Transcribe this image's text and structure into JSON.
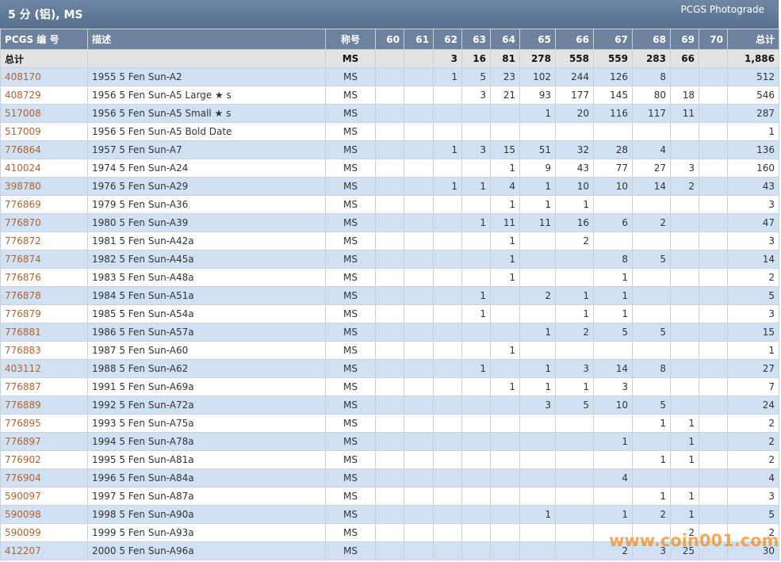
{
  "header": {
    "title": "5 分 (铝), MS",
    "subtitle": "PCGS Photograde"
  },
  "table": {
    "columns": [
      "PCGS 编 号",
      "描述",
      "称号",
      "60",
      "61",
      "62",
      "63",
      "64",
      "65",
      "66",
      "67",
      "68",
      "69",
      "70",
      "总计"
    ],
    "total_row": [
      "总计",
      null,
      "MS",
      null,
      null,
      3,
      16,
      81,
      278,
      558,
      559,
      283,
      66,
      null,
      "1,886"
    ],
    "rows": [
      [
        "408170",
        "1955 5 Fen Sun-A2",
        "MS",
        null,
        null,
        1,
        5,
        23,
        102,
        244,
        126,
        8,
        null,
        null,
        512
      ],
      [
        "408729",
        "1956 5 Fen Sun-A5 Large ★ s",
        "MS",
        null,
        null,
        null,
        3,
        21,
        93,
        177,
        145,
        80,
        18,
        null,
        546
      ],
      [
        "517008",
        "1956 5 Fen Sun-A5 Small ★ s",
        "MS",
        null,
        null,
        null,
        null,
        null,
        1,
        20,
        116,
        117,
        11,
        null,
        287
      ],
      [
        "517009",
        "1956 5 Fen Sun-A5 Bold Date",
        "MS",
        null,
        null,
        null,
        null,
        null,
        null,
        null,
        null,
        null,
        null,
        null,
        1
      ],
      [
        "776864",
        "1957 5 Fen Sun-A7",
        "MS",
        null,
        null,
        1,
        3,
        15,
        51,
        32,
        28,
        4,
        null,
        null,
        136
      ],
      [
        "410024",
        "1974 5 Fen Sun-A24",
        "MS",
        null,
        null,
        null,
        null,
        1,
        9,
        43,
        77,
        27,
        3,
        null,
        160
      ],
      [
        "398780",
        "1976 5 Fen Sun-A29",
        "MS",
        null,
        null,
        1,
        1,
        4,
        1,
        10,
        10,
        14,
        2,
        null,
        43
      ],
      [
        "776869",
        "1979 5 Fen Sun-A36",
        "MS",
        null,
        null,
        null,
        null,
        1,
        1,
        1,
        null,
        null,
        null,
        null,
        3
      ],
      [
        "776870",
        "1980 5 Fen Sun-A39",
        "MS",
        null,
        null,
        null,
        1,
        11,
        11,
        16,
        6,
        2,
        null,
        null,
        47
      ],
      [
        "776872",
        "1981 5 Fen Sun-A42a",
        "MS",
        null,
        null,
        null,
        null,
        1,
        null,
        2,
        null,
        null,
        null,
        null,
        3
      ],
      [
        "776874",
        "1982 5 Fen Sun-A45a",
        "MS",
        null,
        null,
        null,
        null,
        1,
        null,
        null,
        8,
        5,
        null,
        null,
        14
      ],
      [
        "776876",
        "1983 5 Fen Sun-A48a",
        "MS",
        null,
        null,
        null,
        null,
        1,
        null,
        null,
        1,
        null,
        null,
        null,
        2
      ],
      [
        "776878",
        "1984 5 Fen Sun-A51a",
        "MS",
        null,
        null,
        null,
        1,
        null,
        2,
        1,
        1,
        null,
        null,
        null,
        5
      ],
      [
        "776879",
        "1985 5 Fen Sun-A54a",
        "MS",
        null,
        null,
        null,
        1,
        null,
        null,
        1,
        1,
        null,
        null,
        null,
        3
      ],
      [
        "776881",
        "1986 5 Fen Sun-A57a",
        "MS",
        null,
        null,
        null,
        null,
        null,
        1,
        2,
        5,
        5,
        null,
        null,
        15
      ],
      [
        "776883",
        "1987 5 Fen Sun-A60",
        "MS",
        null,
        null,
        null,
        null,
        1,
        null,
        null,
        null,
        null,
        null,
        null,
        1
      ],
      [
        "403112",
        "1988 5 Fen Sun-A62",
        "MS",
        null,
        null,
        null,
        1,
        null,
        1,
        3,
        14,
        8,
        null,
        null,
        27
      ],
      [
        "776887",
        "1991 5 Fen Sun-A69a",
        "MS",
        null,
        null,
        null,
        null,
        1,
        1,
        1,
        3,
        null,
        null,
        null,
        7
      ],
      [
        "776889",
        "1992 5 Fen Sun-A72a",
        "MS",
        null,
        null,
        null,
        null,
        null,
        3,
        5,
        10,
        5,
        null,
        null,
        24
      ],
      [
        "776895",
        "1993 5 Fen Sun-A75a",
        "MS",
        null,
        null,
        null,
        null,
        null,
        null,
        null,
        null,
        1,
        1,
        null,
        2
      ],
      [
        "776897",
        "1994 5 Fen Sun-A78a",
        "MS",
        null,
        null,
        null,
        null,
        null,
        null,
        null,
        1,
        null,
        1,
        null,
        2
      ],
      [
        "776902",
        "1995 5 Fen Sun-A81a",
        "MS",
        null,
        null,
        null,
        null,
        null,
        null,
        null,
        null,
        1,
        1,
        null,
        2
      ],
      [
        "776904",
        "1996 5 Fen Sun-A84a",
        "MS",
        null,
        null,
        null,
        null,
        null,
        null,
        null,
        4,
        null,
        null,
        null,
        4
      ],
      [
        "590097",
        "1997 5 Fen Sun-A87a",
        "MS",
        null,
        null,
        null,
        null,
        null,
        null,
        null,
        null,
        1,
        1,
        null,
        3
      ],
      [
        "590098",
        "1998 5 Fen Sun-A90a",
        "MS",
        null,
        null,
        null,
        null,
        null,
        1,
        null,
        1,
        2,
        1,
        null,
        5
      ],
      [
        "590099",
        "1999 5 Fen Sun-A93a",
        "MS",
        null,
        null,
        null,
        null,
        null,
        null,
        null,
        null,
        null,
        2,
        null,
        2
      ],
      [
        "412207",
        "2000 5 Fen Sun-A96a",
        "MS",
        null,
        null,
        null,
        null,
        null,
        null,
        null,
        2,
        3,
        25,
        null,
        30
      ]
    ]
  },
  "watermark": "www.coin001.com"
}
